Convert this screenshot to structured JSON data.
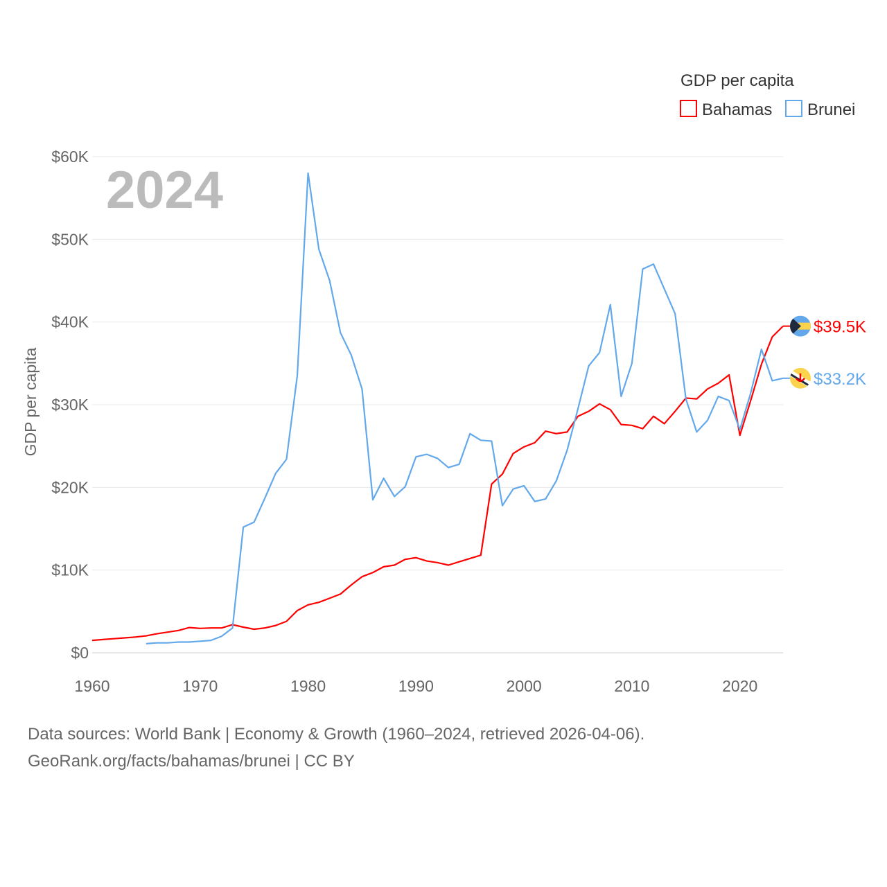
{
  "chart_data": {
    "type": "line",
    "title": "GDP per capita",
    "legend_title": "GDP per capita",
    "legend_position": "top-right",
    "year_label": "2024",
    "xlabel": "",
    "ylabel": "GDP per capita",
    "xlim": [
      1960,
      2024
    ],
    "ylim": [
      0,
      60000
    ],
    "x_ticks": [
      1960,
      1970,
      1980,
      1990,
      2000,
      2010,
      2020
    ],
    "x_tick_labels": [
      "1960",
      "1970",
      "1980",
      "1990",
      "2000",
      "2010",
      "2020"
    ],
    "y_ticks": [
      0,
      10000,
      20000,
      30000,
      40000,
      50000,
      60000
    ],
    "y_tick_labels": [
      "$0",
      "$10K",
      "$20K",
      "$30K",
      "$40K",
      "$50K",
      "$60K"
    ],
    "grid": true,
    "series": [
      {
        "name": "Bahamas",
        "color": "#ff0000",
        "start_year": 1960,
        "end_label": "$39.5K",
        "values": [
          1.5,
          1.6,
          1.7,
          1.8,
          1.9,
          2.05,
          2.3,
          2.5,
          2.7,
          3.05,
          2.95,
          3.0,
          3.0,
          3.4,
          3.1,
          2.85,
          3.0,
          3.3,
          3.8,
          5.1,
          5.8,
          6.1,
          6.6,
          7.1,
          8.2,
          9.2,
          9.7,
          10.4,
          10.6,
          11.3,
          11.5,
          11.1,
          10.9,
          10.6,
          11.0,
          11.4,
          11.8,
          20.4,
          21.6,
          24.1,
          24.9,
          25.4,
          26.8,
          26.5,
          26.7,
          28.6,
          29.2,
          30.1,
          29.4,
          27.6,
          27.5,
          27.1,
          28.6,
          27.7,
          29.2,
          30.8,
          30.7,
          31.9,
          32.6,
          33.6,
          26.3,
          30.5,
          34.9,
          38.2,
          39.5
        ]
      },
      {
        "name": "Brunei",
        "color": "#62a8ea",
        "start_year": 1965,
        "end_label": "$33.2K",
        "values": [
          1.1,
          1.2,
          1.2,
          1.3,
          1.3,
          1.4,
          1.5,
          2.0,
          3.0,
          15.2,
          15.8,
          18.7,
          21.7,
          23.4,
          33.5,
          58.0,
          48.8,
          45.0,
          38.7,
          36.0,
          31.9,
          18.5,
          21.1,
          18.9,
          20.1,
          23.7,
          24.0,
          23.5,
          22.4,
          22.8,
          26.5,
          25.7,
          25.6,
          17.8,
          19.8,
          20.2,
          18.3,
          18.6,
          20.8,
          24.5,
          29.5,
          34.7,
          36.3,
          42.1,
          31.0,
          35.0,
          46.4,
          47.0,
          44.0,
          41.0,
          30.7,
          26.7,
          28.1,
          31.0,
          30.5,
          27.0,
          31.4,
          36.7,
          32.9,
          33.2
        ]
      }
    ],
    "value_unit": "thousand USD"
  },
  "footer": {
    "line1": "Data sources: World Bank | Economy & Growth (1960–2024, retrieved 2026-04-06).",
    "line2": "GeoRank.org/facts/bahamas/brunei | CC BY"
  }
}
